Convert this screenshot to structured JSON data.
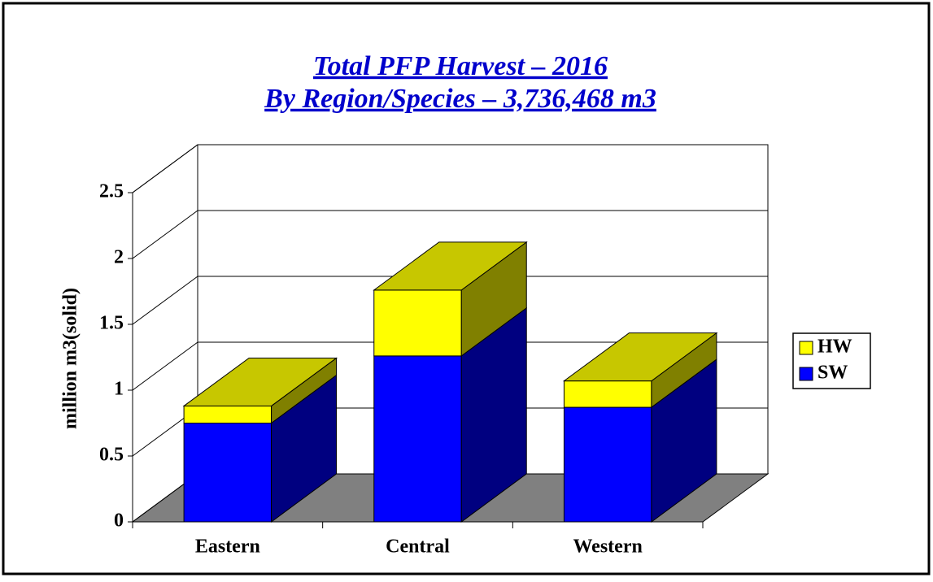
{
  "chart_data": {
    "type": "bar3d_stacked",
    "title": "Total PFP Harvest – 2016",
    "subtitle": "By Region/Species – 3,736,468 m3",
    "y_label": "million m3(solid)",
    "categories": [
      "Eastern",
      "Central",
      "Western"
    ],
    "series": [
      {
        "name": "SW",
        "color": "#0000ff",
        "values": [
          0.75,
          1.26,
          0.87
        ]
      },
      {
        "name": "HW",
        "color": "#ffff00",
        "values": [
          0.13,
          0.5,
          0.2
        ]
      }
    ],
    "ylim": [
      0,
      2.5
    ],
    "yticks": [
      0,
      0.5,
      1,
      1.5,
      2,
      2.5
    ],
    "grid": true,
    "legend": "right"
  }
}
